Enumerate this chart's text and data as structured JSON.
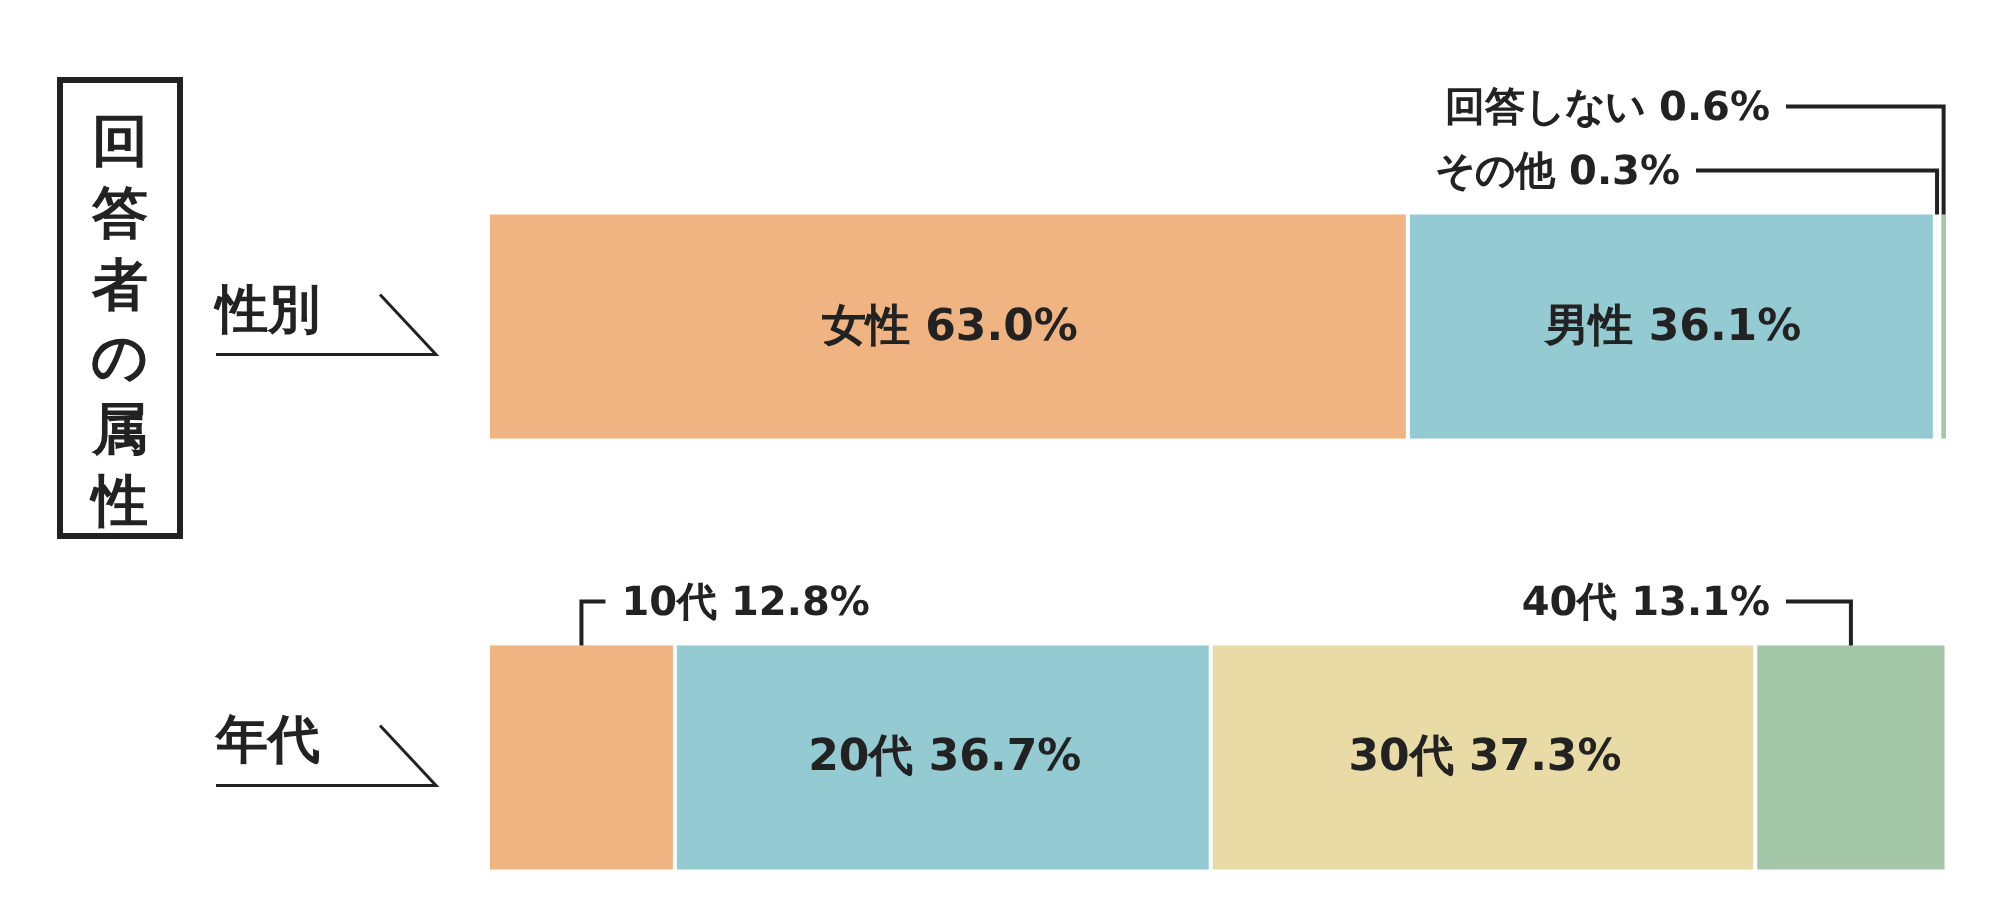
{
  "chart_data": {
    "type": "bar",
    "orientation": "horizontal",
    "stacked": true,
    "title": "回答者の属性",
    "categories": [
      "性別",
      "年代"
    ],
    "series": [
      {
        "color": "#efb482",
        "values": [
          63.0,
          12.8
        ],
        "value_labels": [
          "女性 63.0%",
          "10代 12.8%"
        ]
      },
      {
        "color": "#94cbd3",
        "values": [
          36.1,
          36.7
        ],
        "value_labels": [
          "男性 36.1%",
          "20代 36.7%"
        ]
      },
      {
        "color": "#e8dba6",
        "values": [
          0.3,
          37.3
        ],
        "value_labels": [
          "その他 0.3%",
          "30代 37.3%"
        ]
      },
      {
        "color": "#a5c7a9",
        "values": [
          0.6,
          13.1
        ],
        "value_labels": [
          "回答しない 0.6%",
          "40代 13.1%"
        ]
      }
    ]
  }
}
